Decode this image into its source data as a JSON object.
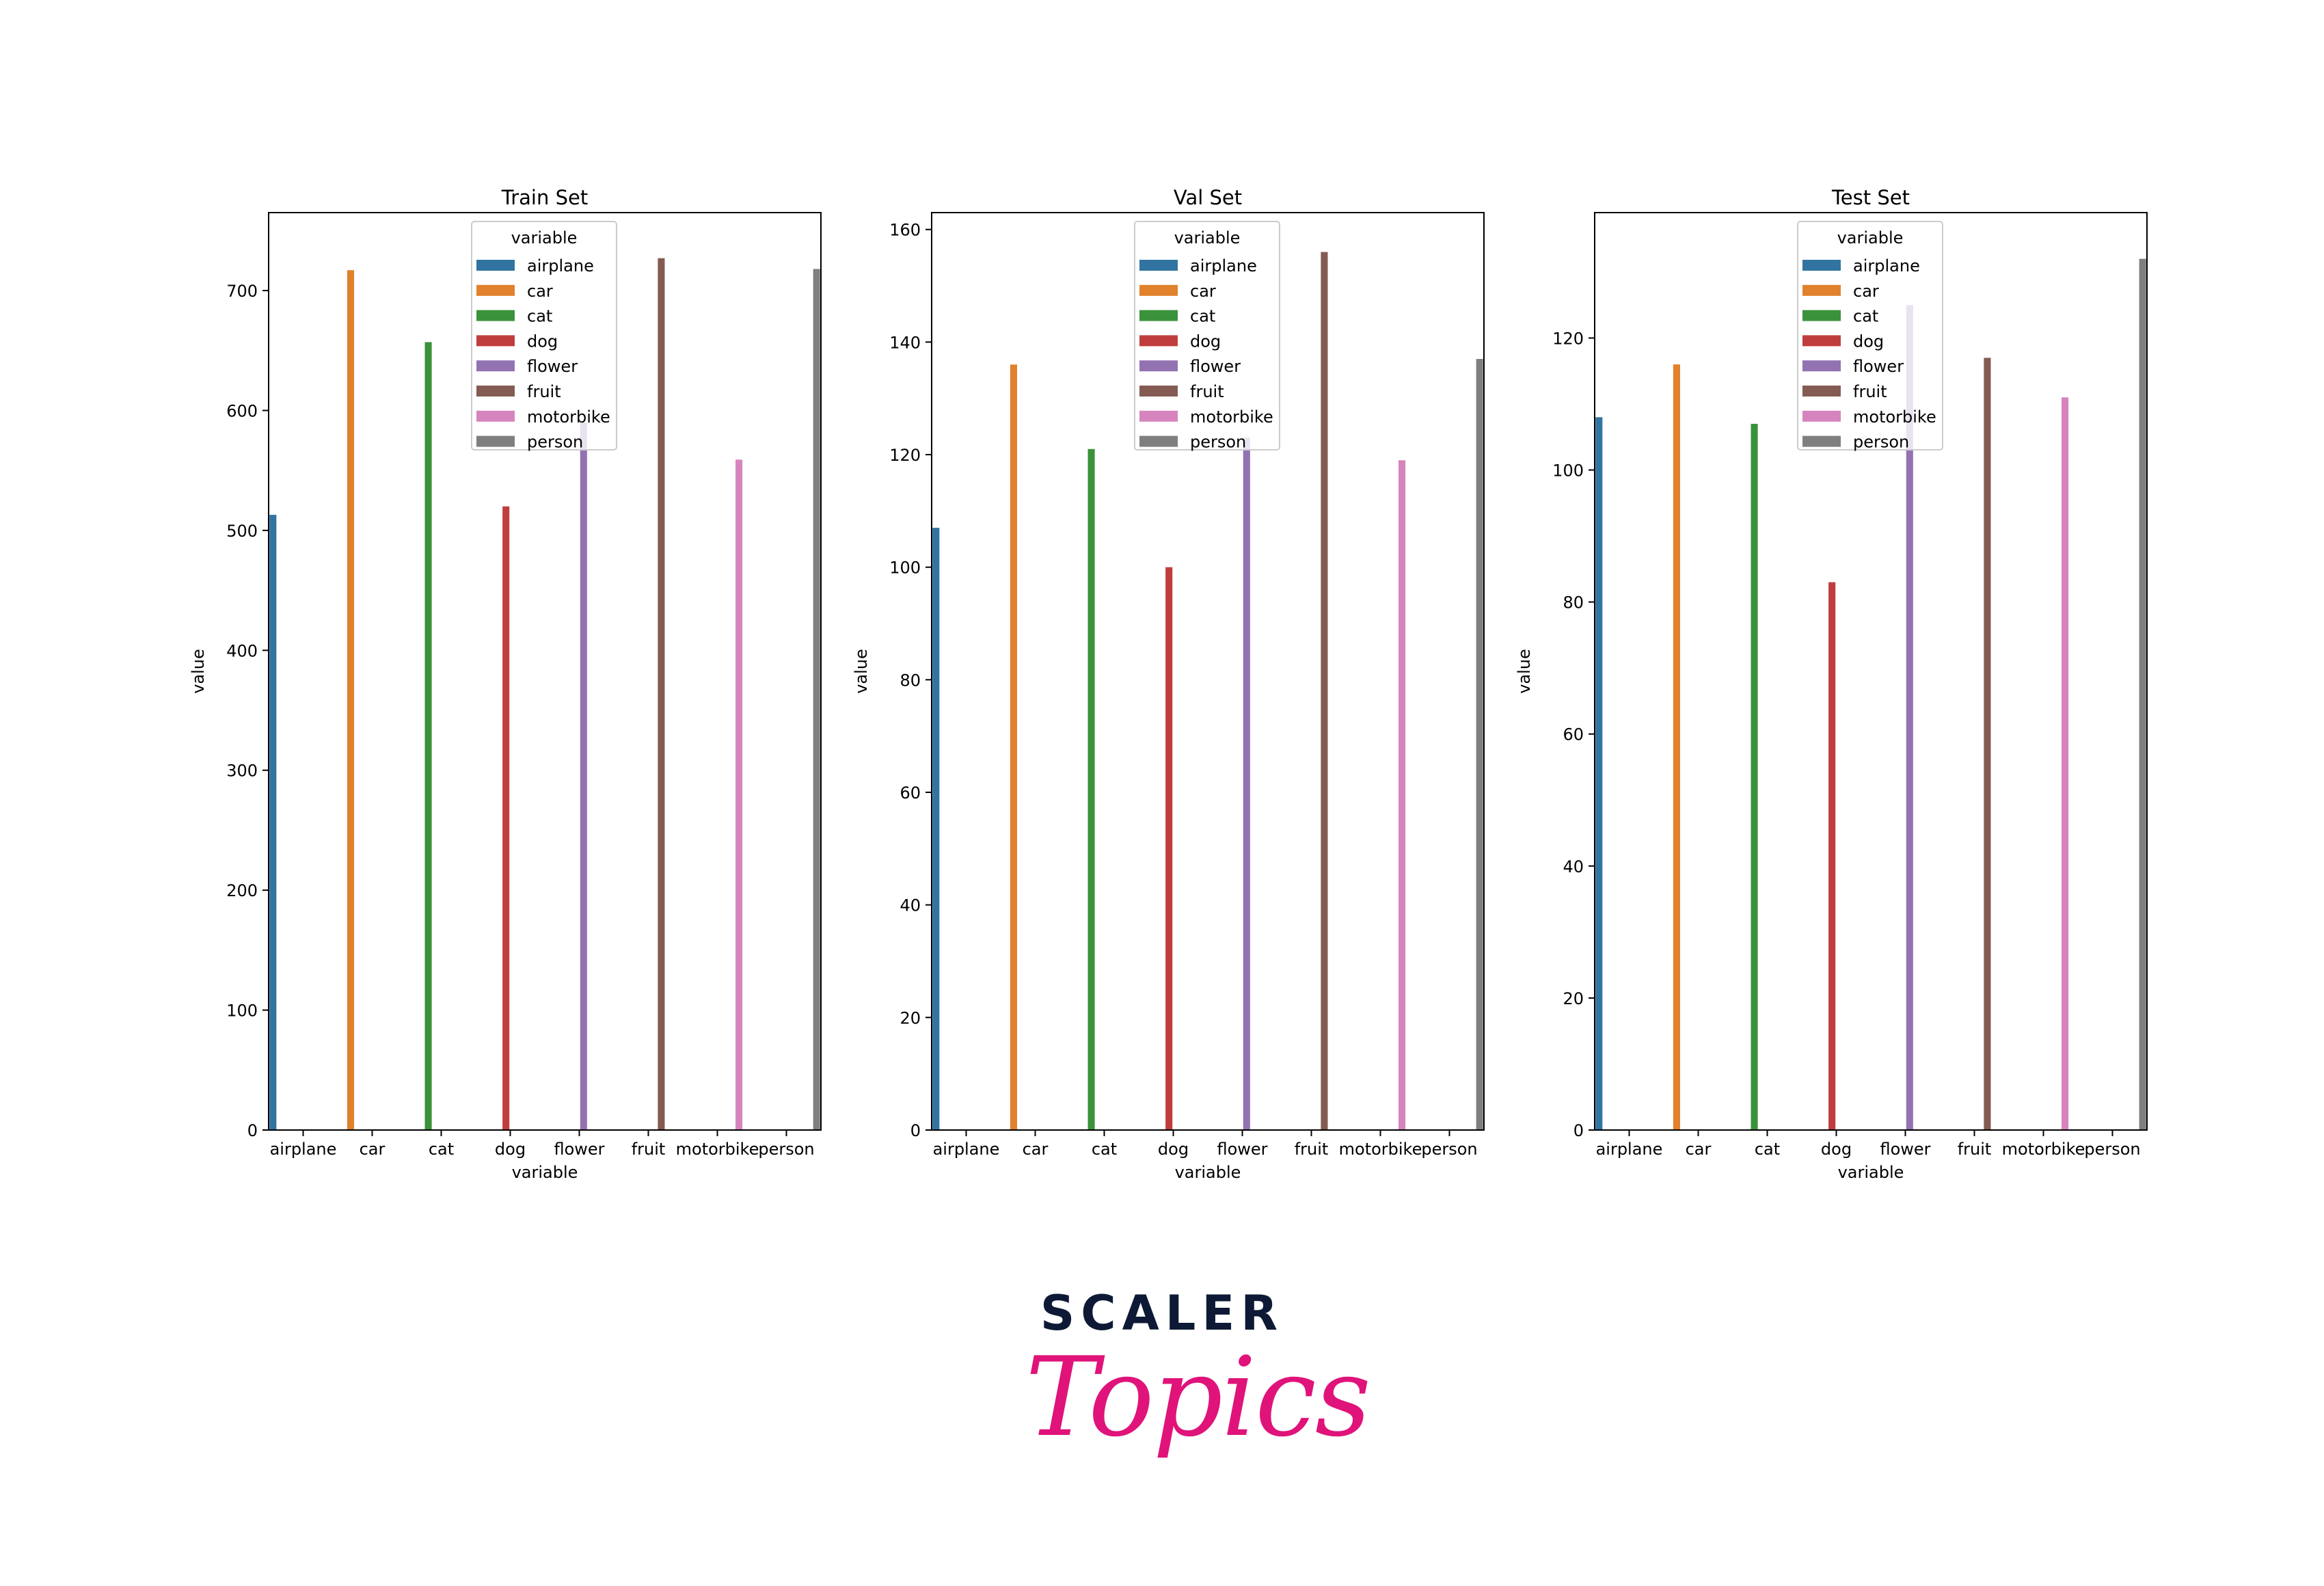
{
  "chart_data": [
    {
      "type": "bar",
      "title": "Train Set",
      "xlabel": "variable",
      "ylabel": "value",
      "categories": [
        "airplane",
        "car",
        "cat",
        "dog",
        "flower",
        "fruit",
        "motorbike",
        "person"
      ],
      "values": [
        513,
        717,
        657,
        520,
        590,
        727,
        559,
        718
      ],
      "ylim": [
        0,
        765
      ],
      "yticks": [
        0,
        100,
        200,
        300,
        400,
        500,
        600,
        700
      ],
      "legend": {
        "title": "variable",
        "placement": "top-center"
      }
    },
    {
      "type": "bar",
      "title": "Val Set",
      "xlabel": "variable",
      "ylabel": "value",
      "categories": [
        "airplane",
        "car",
        "cat",
        "dog",
        "flower",
        "fruit",
        "motorbike",
        "person"
      ],
      "values": [
        107,
        136,
        121,
        100,
        123,
        156,
        119,
        137
      ],
      "ylim": [
        0,
        163
      ],
      "yticks": [
        0,
        20,
        40,
        60,
        80,
        100,
        120,
        140,
        160
      ],
      "legend": {
        "title": "variable",
        "placement": "top-center"
      }
    },
    {
      "type": "bar",
      "title": "Test Set",
      "xlabel": "variable",
      "ylabel": "value",
      "categories": [
        "airplane",
        "car",
        "cat",
        "dog",
        "flower",
        "fruit",
        "motorbike",
        "person"
      ],
      "values": [
        108,
        116,
        107,
        83,
        125,
        117,
        111,
        132
      ],
      "ylim": [
        0,
        139
      ],
      "yticks": [
        0,
        20,
        40,
        60,
        80,
        100,
        120
      ],
      "legend": {
        "title": "variable",
        "placement": "top-center"
      }
    }
  ],
  "colors": [
    "#3274a1",
    "#e1812c",
    "#3a923a",
    "#c03d3e",
    "#9372b2",
    "#845b53",
    "#d684bd",
    "#7f7f7f"
  ],
  "brand": {
    "top": "SCALER",
    "bottom": "Topics"
  }
}
